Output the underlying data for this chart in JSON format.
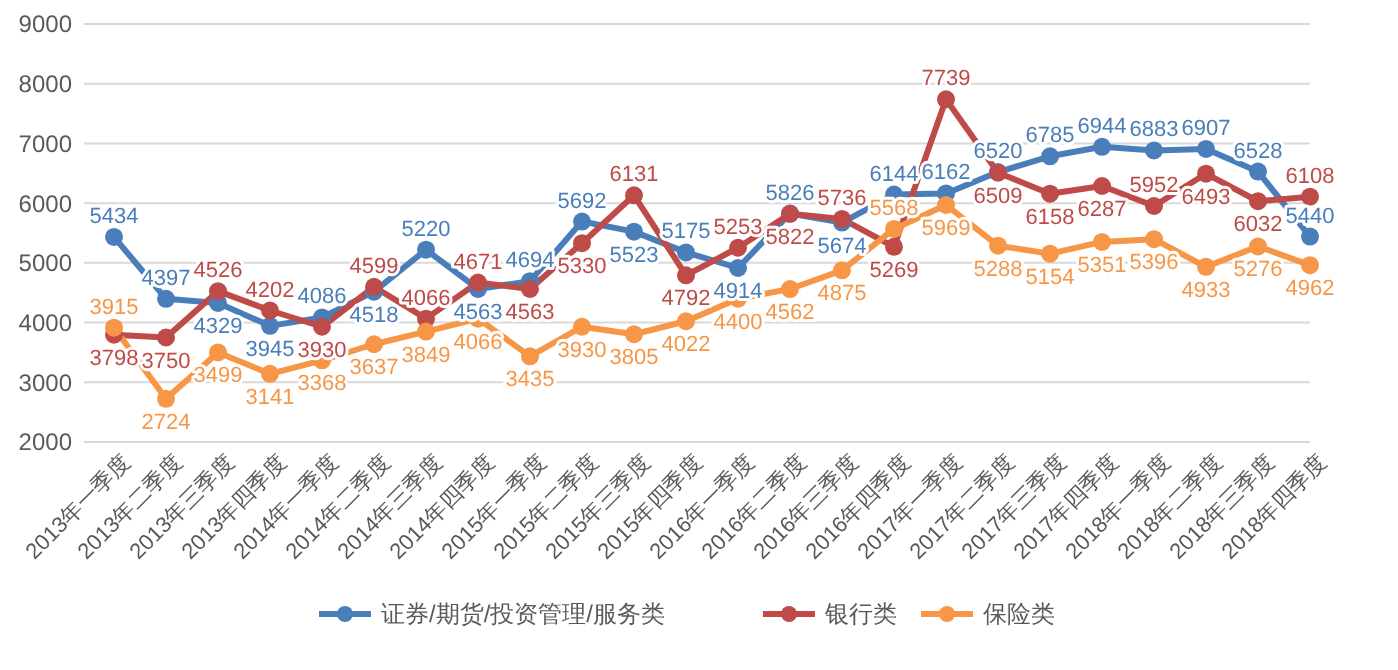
{
  "chart_data": {
    "type": "line",
    "categories": [
      "2013年一季度",
      "2013年二季度",
      "2013年三季度",
      "2013年四季度",
      "2014年一季度",
      "2014年二季度",
      "2014年三季度",
      "2014年四季度",
      "2015年一季度",
      "2015年二季度",
      "2015年三季度",
      "2015年四季度",
      "2016年一季度",
      "2016年二季度",
      "2016年三季度",
      "2016年四季度",
      "2017年一季度",
      "2017年二季度",
      "2017年三季度",
      "2017年四季度",
      "2018年一季度",
      "2018年二季度",
      "2018年三季度",
      "2018年四季度"
    ],
    "series": [
      {
        "name": "证券/期货/投资管理/服务类",
        "color": "#4a7ebb",
        "values": [
          5434,
          4397,
          4329,
          3945,
          4086,
          4518,
          5220,
          4563,
          4694,
          5692,
          5523,
          5175,
          4914,
          5826,
          5674,
          6144,
          6162,
          6520,
          6785,
          6944,
          6883,
          6907,
          6528,
          5440
        ]
      },
      {
        "name": "银行类",
        "color": "#be4b48",
        "values": [
          3798,
          3750,
          4526,
          4202,
          3930,
          4599,
          4066,
          4671,
          4563,
          5330,
          6131,
          4792,
          5253,
          5822,
          5736,
          5269,
          7739,
          6509,
          6158,
          6287,
          5952,
          6493,
          6032,
          6108
        ]
      },
      {
        "name": "保险类",
        "color": "#f79646",
        "values": [
          3915,
          2724,
          3499,
          3141,
          3368,
          3637,
          3849,
          4066,
          3435,
          3930,
          3805,
          4022,
          4400,
          4562,
          4875,
          5568,
          5969,
          5288,
          5154,
          5351,
          5396,
          4933,
          5276,
          4962
        ]
      }
    ],
    "ylim": [
      2000,
      9000
    ],
    "yticks": [
      2000,
      3000,
      4000,
      5000,
      6000,
      7000,
      8000,
      9000
    ],
    "grid": "y",
    "legend": "bottom",
    "marker": "circle",
    "line_style": "solid",
    "data_labels": true
  }
}
